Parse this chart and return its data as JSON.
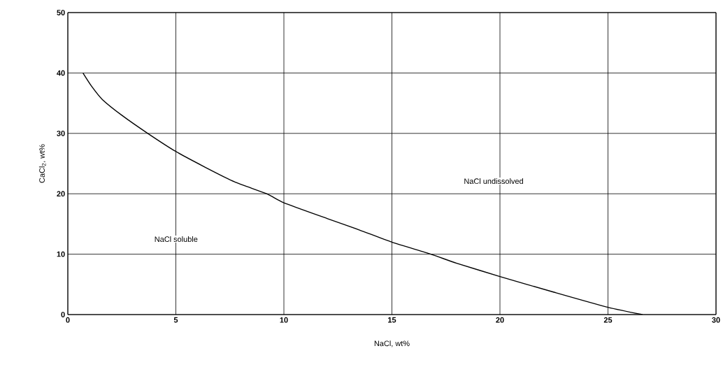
{
  "chart_data": {
    "type": "line",
    "xlabel": "NaCl, wt%",
    "ylabel": "CaCl$_{2}$, wt%",
    "color": "#000000",
    "marker": "none",
    "line_style": "solid",
    "grid": true,
    "x": [
      0.7,
      1.1,
      1.6,
      2.5,
      3.7,
      5,
      6.3,
      7.7,
      9.2,
      10,
      12,
      13.5,
      15,
      16.8,
      18,
      20,
      22.5,
      25,
      26.6
    ],
    "values": [
      40,
      37.8,
      35.6,
      33,
      30,
      27,
      24.5,
      22,
      20,
      18.5,
      15.9,
      14,
      12,
      10,
      8.5,
      6.3,
      3.7,
      1.2,
      0
    ],
    "xlim": [
      0,
      30
    ],
    "ylim": [
      0,
      50
    ],
    "xticks": [
      0,
      5,
      10,
      15,
      20,
      25,
      30
    ],
    "yticks": [
      0,
      10,
      20,
      30,
      40,
      50
    ],
    "annotations": [
      "NaCl soluble",
      "NaCl undissolved"
    ]
  }
}
